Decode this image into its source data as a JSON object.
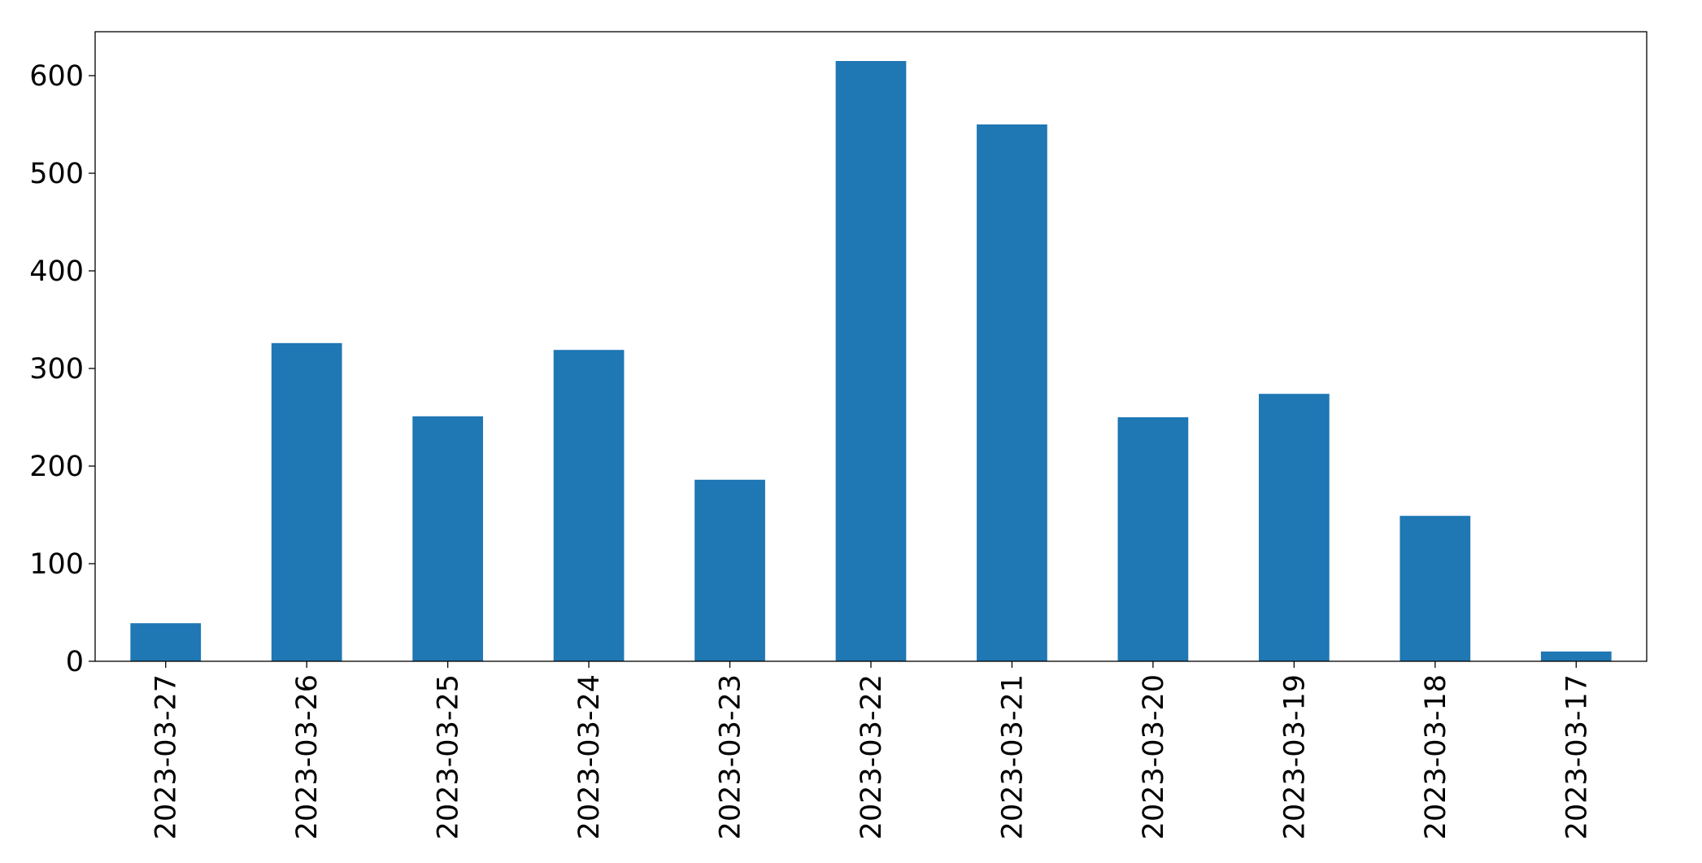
{
  "chart_data": {
    "type": "bar",
    "categories": [
      "2023-03-27",
      "2023-03-26",
      "2023-03-25",
      "2023-03-24",
      "2023-03-23",
      "2023-03-22",
      "2023-03-21",
      "2023-03-20",
      "2023-03-19",
      "2023-03-18",
      "2023-03-17"
    ],
    "values": [
      39,
      326,
      251,
      319,
      186,
      615,
      550,
      250,
      274,
      149,
      10
    ],
    "color": "#1f77b4",
    "ylim": [
      0,
      645
    ],
    "yticks": [
      0,
      100,
      200,
      300,
      400,
      500,
      600
    ],
    "grid": false
  }
}
